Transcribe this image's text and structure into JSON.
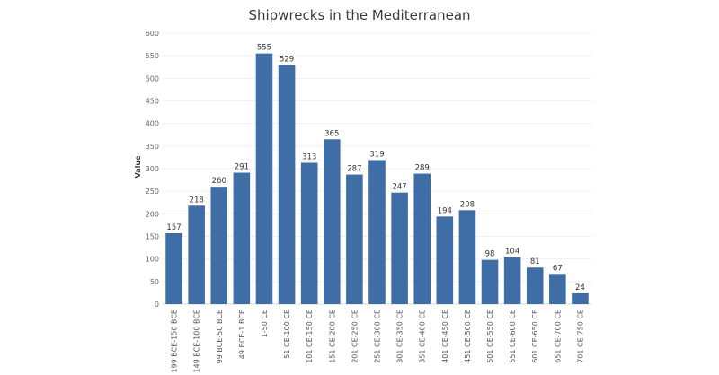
{
  "chart_data": {
    "type": "bar",
    "title": "Shipwrecks in the Mediterranean",
    "xlabel": "",
    "ylabel": "Value",
    "ylim": [
      0,
      600
    ],
    "yticks": [
      0,
      50,
      100,
      150,
      200,
      250,
      300,
      350,
      400,
      450,
      500,
      550,
      600
    ],
    "grid": true,
    "legend": "none",
    "bar_color": "#3f6ea6",
    "categories": [
      "199 BCE-150 BCE",
      "149 BCE-100 BCE",
      "99 BCE-50 BCE",
      "49 BCE-1 BCE",
      "1-50 CE",
      "51 CE-100 CE",
      "101 CE-150 CE",
      "151 CE-200 CE",
      "201 CE-250 CE",
      "251 CE-300 CE",
      "301 CE-350 CE",
      "351 CE-400 CE",
      "401 CE-450 CE",
      "451 CE-500 CE",
      "501 CE-550 CE",
      "551 CE-600 CE",
      "601 CE-650 CE",
      "651 CE-700 CE",
      "701 CE-750 CE"
    ],
    "values": [
      157,
      218,
      260,
      291,
      555,
      529,
      313,
      365,
      287,
      319,
      247,
      289,
      194,
      208,
      98,
      104,
      81,
      67,
      24
    ]
  }
}
